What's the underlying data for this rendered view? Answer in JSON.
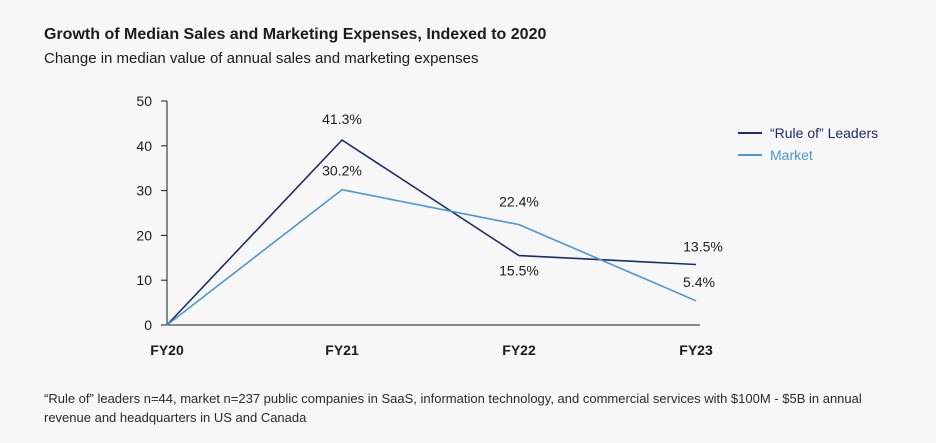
{
  "chart_data": {
    "type": "line",
    "title": "Growth of Median Sales and Marketing Expenses, Indexed to 2020",
    "subtitle": "Change in median value of annual sales and marketing expenses",
    "categories": [
      "FY20",
      "FY21",
      "FY22",
      "FY23"
    ],
    "ylim": [
      0,
      50
    ],
    "yticks": [
      0,
      10,
      20,
      30,
      40,
      50
    ],
    "xlabel": "",
    "ylabel": "",
    "grid": false,
    "legend_position": "top-right",
    "series": [
      {
        "name": "“Rule of” Leaders",
        "color": "#1b2d6b",
        "values": [
          0,
          41.3,
          15.5,
          13.5
        ],
        "labels": [
          "",
          "41.3%",
          "15.5%",
          "13.5%"
        ]
      },
      {
        "name": "Market",
        "color": "#4a98d1",
        "values": [
          0,
          30.2,
          22.4,
          5.4
        ],
        "labels": [
          "",
          "30.2%",
          "22.4%",
          "5.4%"
        ]
      }
    ],
    "footnote": "“Rule of” leaders n=44, market n=237 public companies in SaaS, information technology, and commercial services with $100M - $5B in annual revenue and headquarters in US and Canada"
  }
}
